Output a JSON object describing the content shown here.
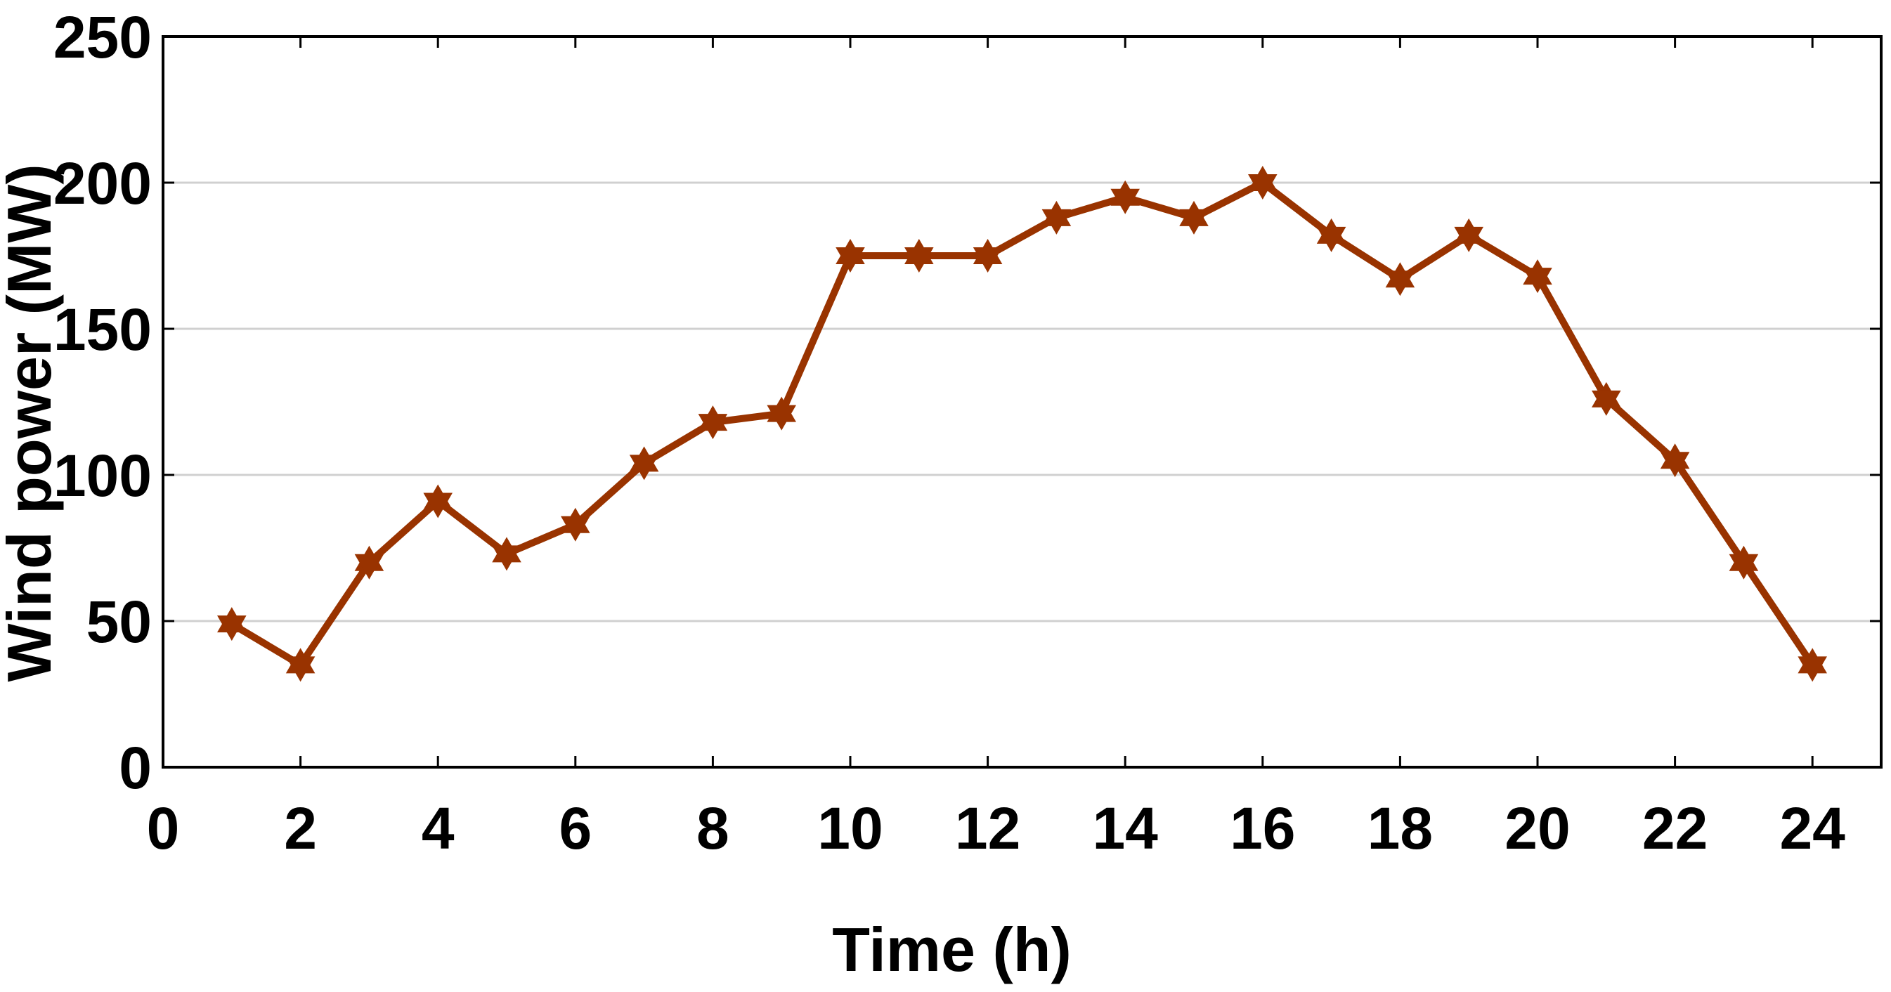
{
  "chart_data": {
    "type": "line",
    "title": "",
    "xlabel": "Time (h)",
    "ylabel": "Wind power (MW)",
    "xlim": [
      0,
      25
    ],
    "ylim": [
      0,
      250
    ],
    "xticks": [
      0,
      2,
      4,
      6,
      8,
      10,
      12,
      14,
      16,
      18,
      20,
      22,
      24
    ],
    "yticks": [
      0,
      50,
      100,
      150,
      200,
      250
    ],
    "grid": "horizontal",
    "marker": "star",
    "color": "#993300",
    "series": [
      {
        "x": [
          1,
          2,
          3,
          4,
          5,
          6,
          7,
          8,
          9,
          10,
          11,
          12,
          13,
          14,
          15,
          16,
          17,
          18,
          19,
          20,
          21,
          22,
          23,
          24
        ],
        "values": [
          49,
          35,
          70,
          91,
          73,
          83,
          104,
          118,
          121,
          175,
          175,
          175,
          188,
          195,
          188,
          200,
          182,
          167,
          182,
          168,
          126,
          105,
          70,
          35
        ]
      }
    ]
  }
}
